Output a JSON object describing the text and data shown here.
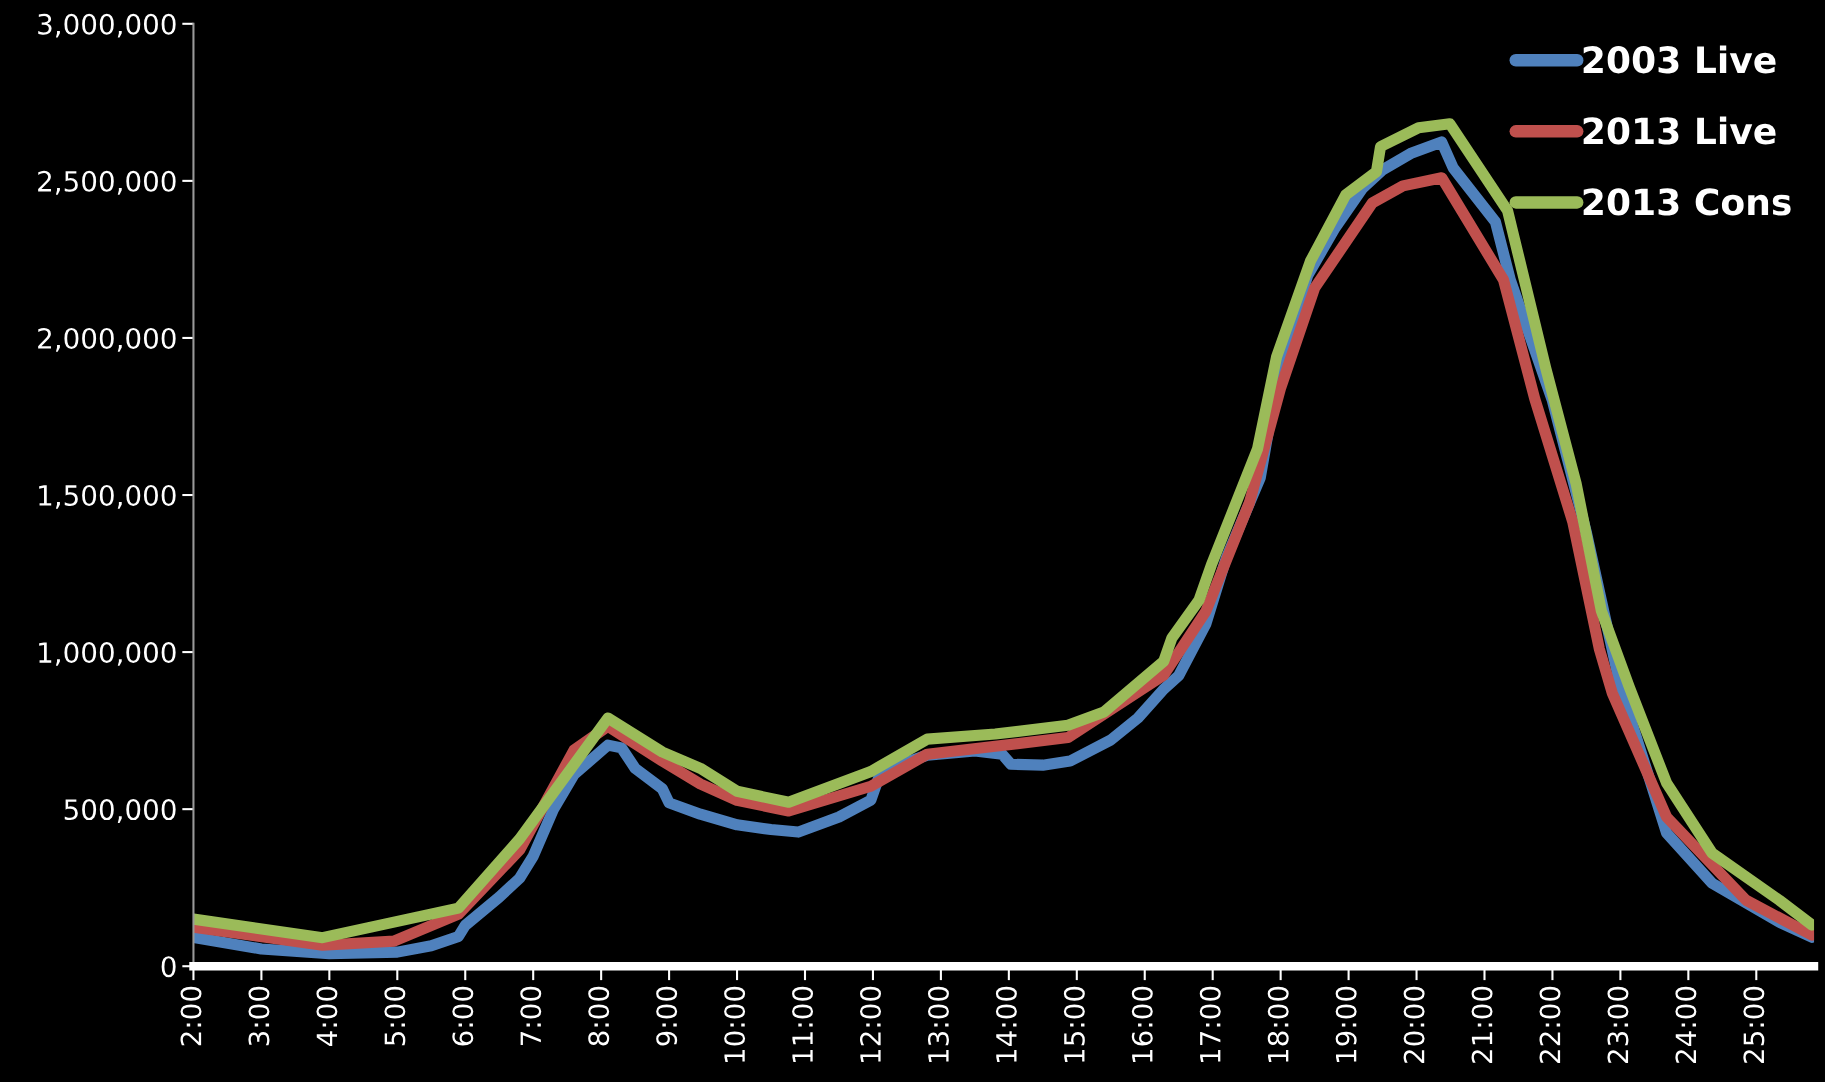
{
  "chart_data": {
    "type": "line",
    "xlim": [
      2,
      25.85
    ],
    "ylim": [
      0,
      3000000
    ],
    "xticks": [
      {
        "value": 2,
        "label": "2:00"
      },
      {
        "value": 3,
        "label": "3:00"
      },
      {
        "value": 4,
        "label": "4:00"
      },
      {
        "value": 5,
        "label": "5:00"
      },
      {
        "value": 6,
        "label": "6:00"
      },
      {
        "value": 7,
        "label": "7:00"
      },
      {
        "value": 8,
        "label": "8:00"
      },
      {
        "value": 9,
        "label": "9:00"
      },
      {
        "value": 10,
        "label": "10:00"
      },
      {
        "value": 11,
        "label": "11:00"
      },
      {
        "value": 12,
        "label": "12:00"
      },
      {
        "value": 13,
        "label": "13:00"
      },
      {
        "value": 14,
        "label": "14:00"
      },
      {
        "value": 15,
        "label": "15:00"
      },
      {
        "value": 16,
        "label": "16:00"
      },
      {
        "value": 17,
        "label": "17:00"
      },
      {
        "value": 18,
        "label": "18:00"
      },
      {
        "value": 19,
        "label": "19:00"
      },
      {
        "value": 20,
        "label": "20:00"
      },
      {
        "value": 21,
        "label": "21:00"
      },
      {
        "value": 22,
        "label": "22:00"
      },
      {
        "value": 23,
        "label": "23:00"
      },
      {
        "value": 24,
        "label": "24:00"
      },
      {
        "value": 25,
        "label": "25:00"
      }
    ],
    "yticks": [
      {
        "value": 0,
        "label": "0"
      },
      {
        "value": 500000,
        "label": "500,000"
      },
      {
        "value": 1000000,
        "label": "1,000,000"
      },
      {
        "value": 1500000,
        "label": "1,500,000"
      },
      {
        "value": 2000000,
        "label": "2,000,000"
      },
      {
        "value": 2500000,
        "label": "2,500,000"
      },
      {
        "value": 3000000,
        "label": "3,000,000"
      }
    ],
    "grid": false,
    "legend": "top right",
    "marker": "none",
    "line_style": "solid",
    "series": [
      {
        "name": "2003 Live",
        "color": "#4f81bd",
        "x": [
          2.0,
          3.0,
          4.0,
          5.0,
          5.5,
          5.9,
          6.0,
          6.5,
          6.8,
          7.0,
          7.3,
          7.6,
          8.1,
          8.3,
          8.5,
          8.9,
          9.0,
          9.46,
          10.0,
          10.5,
          10.9,
          11.5,
          11.97,
          12.1,
          12.5,
          12.8,
          13.5,
          13.9,
          14.03,
          14.5,
          14.9,
          15.5,
          15.9,
          16.28,
          16.5,
          16.9,
          17.2,
          17.7,
          18.0,
          18.4,
          18.8,
          19.2,
          19.5,
          19.93,
          20.37,
          20.54,
          21.16,
          21.38,
          22.0,
          22.5,
          23.0,
          23.68,
          24.35,
          25.34,
          25.82
        ],
        "values": [
          92000,
          55000,
          40000,
          45000,
          65000,
          95000,
          130000,
          220000,
          280000,
          350000,
          500000,
          610000,
          704000,
          695000,
          630000,
          565000,
          520000,
          484000,
          450000,
          435000,
          427000,
          475000,
          529000,
          610000,
          650000,
          672000,
          685000,
          675000,
          643000,
          640000,
          653000,
          720000,
          790000,
          882000,
          925000,
          1090000,
          1300000,
          1555000,
          1925000,
          2200000,
          2350000,
          2475000,
          2535000,
          2589000,
          2624000,
          2541000,
          2370000,
          2185000,
          1800000,
          1380000,
          890000,
          424000,
          264000,
          140000,
          92000
        ]
      },
      {
        "name": "2013 Live",
        "color": "#c0504d",
        "x": [
          2.0,
          3.9,
          4.95,
          5.9,
          6.8,
          7.6,
          8.1,
          8.9,
          9.46,
          10.0,
          10.76,
          11.97,
          12.8,
          13.8,
          14.87,
          16.28,
          16.9,
          17.54,
          18.0,
          18.5,
          19.35,
          19.8,
          20.37,
          21.28,
          21.74,
          22.3,
          22.69,
          22.88,
          23.68,
          24.85,
          25.82
        ],
        "values": [
          124000,
          67000,
          80000,
          166000,
          370000,
          688000,
          764000,
          653000,
          580000,
          528000,
          494000,
          573000,
          675000,
          700000,
          728000,
          927000,
          1130000,
          1475000,
          1841000,
          2159000,
          2430000,
          2484000,
          2510000,
          2185000,
          1806000,
          1414000,
          1010000,
          870000,
          475000,
          210000,
          99000
        ]
      },
      {
        "name": "2013 Cons",
        "color": "#9bbb59",
        "x": [
          2.0,
          3.9,
          5.9,
          6.8,
          8.1,
          8.9,
          9.46,
          10.0,
          10.76,
          11.97,
          12.8,
          13.8,
          14.87,
          15.4,
          16.28,
          16.4,
          16.8,
          16.98,
          17.66,
          17.94,
          18.44,
          18.96,
          19.41,
          19.47,
          20.03,
          20.49,
          21.34,
          21.9,
          22.35,
          22.72,
          23.13,
          23.68,
          24.35,
          25.34,
          25.82
        ],
        "values": [
          150000,
          91000,
          185000,
          405000,
          790000,
          682000,
          630000,
          557000,
          522000,
          620000,
          723000,
          739000,
          767000,
          809000,
          971000,
          1045000,
          1166000,
          1277000,
          1647000,
          1940000,
          2245000,
          2456000,
          2529000,
          2609000,
          2669000,
          2682000,
          2405000,
          1905000,
          1535000,
          1131000,
          889000,
          583000,
          360000,
          210000,
          131000
        ]
      }
    ]
  }
}
